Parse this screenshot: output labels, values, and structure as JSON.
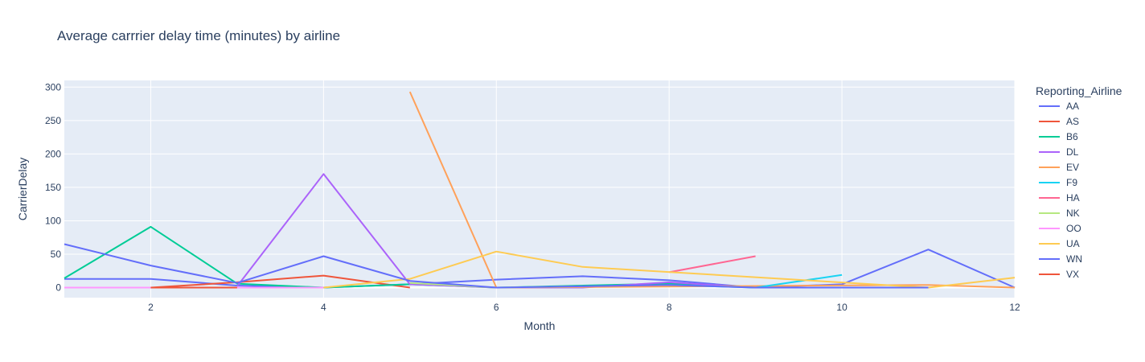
{
  "chart_data": {
    "type": "line",
    "title": "Average carrrier delay time (minutes) by airline",
    "xlabel": "Month",
    "ylabel": "CarrierDelay",
    "xlim": [
      1,
      12
    ],
    "ylim": [
      -15,
      310
    ],
    "xticks": [
      2,
      4,
      6,
      8,
      10,
      12
    ],
    "yticks": [
      0,
      50,
      100,
      150,
      200,
      250,
      300
    ],
    "grid": true,
    "legend_title": "Reporting_Airline",
    "legend_position": "right",
    "series": [
      {
        "name": "AA",
        "color": "#636efa",
        "points": [
          [
            1,
            13
          ],
          [
            2,
            13
          ],
          [
            3,
            3
          ],
          [
            4,
            0
          ],
          [
            5,
            5
          ],
          [
            6,
            12
          ],
          [
            7,
            17
          ],
          [
            8,
            11
          ],
          [
            9,
            0
          ],
          [
            10,
            5
          ],
          [
            11,
            57
          ],
          [
            12,
            0
          ]
        ]
      },
      {
        "name": "AS",
        "color": "#EF553B",
        "points": [
          [
            2,
            0
          ],
          [
            3,
            8
          ],
          [
            4,
            18
          ],
          [
            5,
            0
          ]
        ]
      },
      {
        "name": "B6",
        "color": "#00cc96",
        "points": [
          [
            1,
            14
          ],
          [
            2,
            91
          ],
          [
            3,
            6
          ],
          [
            4,
            0
          ],
          [
            5,
            5
          ],
          [
            6,
            0
          ],
          [
            7,
            3
          ],
          [
            8,
            6
          ],
          [
            9,
            0
          ],
          [
            10,
            0
          ],
          [
            11,
            0
          ]
        ]
      },
      {
        "name": "DL",
        "color": "#ab63fa",
        "points": [
          [
            3,
            2
          ],
          [
            4,
            170
          ],
          [
            5,
            5
          ],
          [
            6,
            0
          ],
          [
            7,
            0
          ],
          [
            8,
            8
          ],
          [
            9,
            0
          ],
          [
            10,
            0
          ],
          [
            11,
            0
          ]
        ]
      },
      {
        "name": "EV",
        "color": "#FFA15A",
        "points": [
          [
            5,
            293
          ],
          [
            6,
            0
          ],
          [
            11,
            4
          ],
          [
            12,
            0
          ]
        ]
      },
      {
        "name": "F9",
        "color": "#19d3f3",
        "points": [
          [
            8,
            4
          ],
          [
            9,
            0
          ],
          [
            10,
            19
          ]
        ]
      },
      {
        "name": "HA",
        "color": "#FF6692",
        "points": [
          [
            8,
            23
          ],
          [
            9,
            47
          ]
        ]
      },
      {
        "name": "NK",
        "color": "#B6E880",
        "points": [
          [
            5,
            7
          ],
          [
            6,
            0
          ],
          [
            7,
            2
          ]
        ]
      },
      {
        "name": "OO",
        "color": "#FF97FF",
        "points": [
          [
            1,
            0
          ],
          [
            2,
            0
          ],
          [
            3,
            0
          ],
          [
            4,
            0
          ]
        ]
      },
      {
        "name": "UA",
        "color": "#FECB52",
        "points": [
          [
            4,
            0
          ],
          [
            5,
            13
          ],
          [
            6,
            54
          ],
          [
            7,
            31
          ],
          [
            11,
            0
          ],
          [
            12,
            15
          ]
        ]
      },
      {
        "name": "WN",
        "color": "#636efa",
        "points": [
          [
            1,
            65
          ],
          [
            2,
            33
          ],
          [
            3,
            7
          ],
          [
            4,
            47
          ],
          [
            5,
            10
          ],
          [
            6,
            0
          ],
          [
            7,
            2
          ],
          [
            8,
            4
          ],
          [
            9,
            0
          ],
          [
            10,
            0
          ],
          [
            11,
            0
          ]
        ]
      },
      {
        "name": "VX",
        "color": "#EF553B",
        "points": [
          [
            2,
            0
          ],
          [
            3,
            0
          ]
        ]
      }
    ]
  }
}
